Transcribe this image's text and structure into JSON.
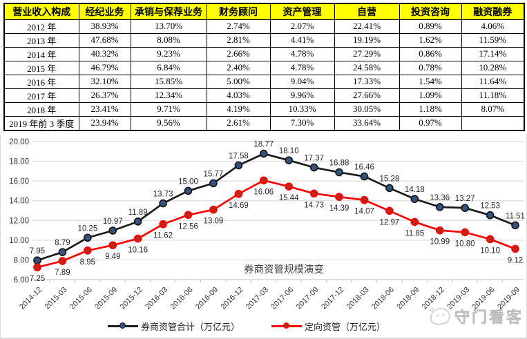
{
  "table": {
    "header_bg": "#FFFF00",
    "headers": [
      "营业收入构成",
      "经纪业务",
      "承销与保荐业务",
      "财务顾问",
      "资产管理",
      "自营",
      "投资咨询",
      "融资融券"
    ],
    "rows": [
      [
        "2012 年",
        "38.93%",
        "13.70%",
        "2.74%",
        "2.07%",
        "22.41%",
        "0.89%",
        "4.06%"
      ],
      [
        "2013 年",
        "47.68%",
        "8.08%",
        "2.81%",
        "4.41%",
        "19.19%",
        "1.62%",
        "11.59%"
      ],
      [
        "2014 年",
        "40.32%",
        "9.23%",
        "2.66%",
        "4.78%",
        "27.29%",
        "0.86%",
        "17.14%"
      ],
      [
        "2015 年",
        "46.79%",
        "6.84%",
        "2.40%",
        "4.78%",
        "24.58%",
        "0.78%",
        "10.28%"
      ],
      [
        "2016 年",
        "32.10%",
        "15.85%",
        "5.00%",
        "9.04%",
        "17.33%",
        "1.54%",
        "11.64%"
      ],
      [
        "2017 年",
        "26.37%",
        "12.34%",
        "4.03%",
        "9.96%",
        "27.66%",
        "1.09%",
        "11.18%"
      ],
      [
        "2018 年",
        "23.41%",
        "9.71%",
        "4.19%",
        "10.33%",
        "30.05%",
        "1.18%",
        "8.07%"
      ],
      [
        "2019 年前 3 季度",
        "23.94%",
        "9.56%",
        "2.61%",
        "7.30%",
        "33.64%",
        "0.97%",
        ""
      ]
    ]
  },
  "chart_data": {
    "type": "line",
    "title": "券商资管规模演变",
    "x": [
      "2014-12",
      "2015-03",
      "2015-06",
      "2015-09",
      "2015-12",
      "2016-03",
      "2016-06",
      "2016-09",
      "2016-12",
      "2017-03",
      "2017-06",
      "2017-09",
      "2017-12",
      "2018-03",
      "2018-06",
      "2018-09",
      "2018-12",
      "2019-03",
      "2019-06",
      "2019-09"
    ],
    "series": [
      {
        "name": "券商资管合计（万亿元）",
        "color": "#1a1a1a",
        "marker_fill": "#33527D",
        "marker_stroke": "#111111",
        "values": [
          7.95,
          8.79,
          10.25,
          10.97,
          11.89,
          13.73,
          15.0,
          15.77,
          17.58,
          18.77,
          18.1,
          17.37,
          16.88,
          16.46,
          15.28,
          14.18,
          13.36,
          13.27,
          12.53,
          11.51
        ]
      },
      {
        "name": "定向资管（万亿元）",
        "color": "#FF0000",
        "marker_fill": "#C42318",
        "marker_stroke": "#FF0000",
        "values": [
          7.25,
          7.89,
          8.95,
          9.49,
          10.16,
          11.62,
          12.56,
          13.09,
          14.69,
          16.06,
          15.44,
          14.73,
          14.39,
          14.07,
          12.97,
          11.85,
          10.99,
          10.8,
          10.1,
          9.12
        ]
      }
    ],
    "ylim": [
      6,
      20
    ],
    "ytick_step": 2,
    "yticks": [
      "20.00",
      "18.00",
      "16.00",
      "14.00",
      "12.00",
      "10.00",
      "8.00",
      "6.00"
    ],
    "grid": true,
    "gridline_color": "#D6D6D6",
    "axis_color": "#BFBFBF",
    "tick_label_color": "#333333",
    "data_label_color": "#262626",
    "legend_position": "bottom"
  },
  "watermark": {
    "text": "守门看客"
  }
}
